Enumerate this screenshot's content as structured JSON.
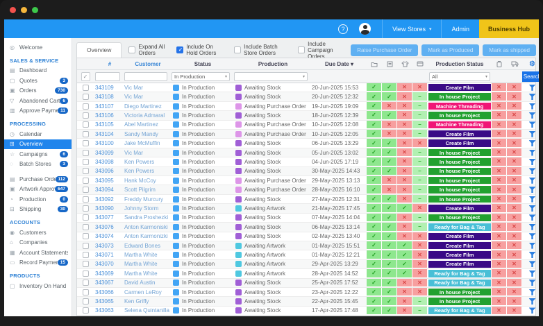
{
  "topbar": {
    "help": "?",
    "view_stores": "View Stores",
    "view_stores_caret": "▾",
    "admin": "Admin",
    "business_hub": "Business Hub"
  },
  "icon_glyphs": {
    "info-icon": "◎",
    "dashboard-icon": "▤",
    "quotes-icon": "▢",
    "orders-icon": "▣",
    "cart-icon": "▽",
    "payments-icon": "▥",
    "calendar-icon": "◷",
    "overview-icon": "⊞",
    "campaigns-icon": "☆",
    "batch-stores-icon": "◌",
    "purchase-orders-icon": "▤",
    "artwork-icon": "▣",
    "production-icon": "◔",
    "shipping-icon": "⊟",
    "customers-icon": "◉",
    "companies-icon": "⌂",
    "statements-icon": "▦",
    "record-payments-icon": "▭",
    "inventory-icon": "▢",
    "gear-icon": "⚙"
  },
  "sidebar": {
    "sections": [
      {
        "header": null,
        "items": [
          {
            "label": "Welcome",
            "icon": "info-icon"
          }
        ]
      },
      {
        "header": "SALES & SERVICE",
        "items": [
          {
            "label": "Dashboard",
            "icon": "dashboard-icon"
          },
          {
            "label": "Quotes",
            "icon": "quotes-icon",
            "badge": "3"
          },
          {
            "label": "Orders",
            "icon": "orders-icon",
            "badge": "730"
          },
          {
            "label": "Abandoned Carts",
            "icon": "cart-icon",
            "badge": "6"
          },
          {
            "label": "Approve Payments",
            "icon": "payments-icon",
            "badge": "11"
          }
        ]
      },
      {
        "header": "PROCESSING",
        "items": [
          {
            "label": "Calendar",
            "icon": "calendar-icon"
          },
          {
            "label": "Overview",
            "icon": "overview-icon",
            "selected": true
          },
          {
            "label": "Campaigns",
            "icon": "campaigns-icon",
            "badge": "6"
          },
          {
            "label": "Batch Stores",
            "icon": "batch-stores-icon",
            "badge": "3"
          },
          {
            "label": "Purchase Orders",
            "icon": "purchase-orders-icon",
            "badge": "112",
            "gap": true
          },
          {
            "label": "Artwork Approvals",
            "icon": "artwork-icon",
            "badge": "647"
          },
          {
            "label": "Production",
            "icon": "production-icon",
            "badge": "0"
          },
          {
            "label": "Shipping",
            "icon": "shipping-icon",
            "badge": "30"
          }
        ]
      },
      {
        "header": "ACCOUNTS",
        "items": [
          {
            "label": "Customers",
            "icon": "customers-icon"
          },
          {
            "label": "Companies",
            "icon": "companies-icon"
          },
          {
            "label": "Account Statements",
            "icon": "statements-icon"
          },
          {
            "label": "Record Payments",
            "icon": "record-payments-icon",
            "badge": "15"
          }
        ]
      },
      {
        "header": "PRODUCTS",
        "items": [
          {
            "label": "Inventory On Hand",
            "icon": "inventory-icon"
          }
        ]
      }
    ]
  },
  "toolbar": {
    "tab": "Overview",
    "checkboxes": [
      {
        "label": "Expand All Orders",
        "checked": false
      },
      {
        "label": "Include On Hold Orders",
        "checked": true
      },
      {
        "label": "Include Batch Store Orders",
        "checked": false
      },
      {
        "label": "Include Campaign Orders",
        "checked": false
      }
    ],
    "actions": [
      "Raise Purchase Order",
      "Mark as Produced",
      "Mark as shipped"
    ]
  },
  "table": {
    "header": {
      "id": "#",
      "customer": "Customer",
      "status": "Status",
      "production": "Production",
      "due": "Due Date",
      "due_sort": "▾",
      "production_status": "Production Status"
    },
    "filter": {
      "select_all_checked": true,
      "id_value": "",
      "customer_value": "",
      "status_value": "In Production",
      "production_value": "",
      "production_status_value": "All",
      "caret": "▾",
      "search_label": "Search"
    },
    "flag_glyphs": {
      "y": "✓",
      "n": "✕",
      "d": "–"
    },
    "rows": [
      {
        "id": "343109",
        "customer": "Vic Mar",
        "status": "In Production",
        "production": "Awaiting Stock",
        "due": "20-Jun-2025 15:53",
        "flags": "yynn",
        "production_status": "Create Film",
        "post_flags": "nn"
      },
      {
        "id": "343108",
        "customer": "Vic Mar",
        "status": "In Production",
        "production": "Awaiting Stock",
        "due": "20-Jun-2025 12:32",
        "flags": "yynd",
        "production_status": "In house Project",
        "post_flags": "nn"
      },
      {
        "id": "343107",
        "customer": "Diego Martinez",
        "status": "In Production",
        "production": "Awaiting Purchase Order",
        "due": "19-Jun-2025 19:09",
        "flags": "ynnd",
        "production_status": "Machine Threading",
        "post_flags": "nn"
      },
      {
        "id": "343106",
        "customer": "Victoria Admaral",
        "status": "In Production",
        "production": "Awaiting Stock",
        "due": "18-Jun-2025 12:39",
        "flags": "yynd",
        "production_status": "In house Project",
        "post_flags": "nn"
      },
      {
        "id": "343105",
        "customer": "Abel Martinez",
        "status": "In Production",
        "production": "Awaiting Purchase Order",
        "due": "10-Jun-2025 12:08",
        "flags": "ynnd",
        "production_status": "Machine Threading",
        "post_flags": "nn"
      },
      {
        "id": "343104",
        "customer": "Sandy Mandy",
        "status": "In Production",
        "production": "Awaiting Purchase Order",
        "due": "10-Jun-2025 12:05",
        "flags": "ynnd",
        "production_status": "Create Film",
        "post_flags": "nn"
      },
      {
        "id": "343100",
        "customer": "Jake McMuffin",
        "status": "In Production",
        "production": "Awaiting Stock",
        "due": "06-Jun-2025 13:29",
        "flags": "yynn",
        "production_status": "Create Film",
        "post_flags": "nn"
      },
      {
        "id": "343099",
        "customer": "Vic Mar",
        "status": "In Production",
        "production": "Awaiting Stock",
        "due": "05-Jun-2025 13:02",
        "flags": "yynd",
        "production_status": "In house Project",
        "post_flags": "nn"
      },
      {
        "id": "343098",
        "customer": "Ken Powers",
        "status": "In Production",
        "production": "Awaiting Stock",
        "due": "04-Jun-2025 17:19",
        "flags": "yynd",
        "production_status": "In house Project",
        "post_flags": "nn"
      },
      {
        "id": "343096",
        "customer": "Ken Powers",
        "status": "In Production",
        "production": "Awaiting Stock",
        "due": "30-May-2025 14:43",
        "flags": "yynd",
        "production_status": "In house Project",
        "post_flags": "nn"
      },
      {
        "id": "343095",
        "customer": "Hank McCoy",
        "status": "In Production",
        "production": "Awaiting Purchase Order",
        "due": "29-May-2025 13:13",
        "flags": "ynnd",
        "production_status": "In house Project",
        "post_flags": "nn"
      },
      {
        "id": "343094",
        "customer": "Scott Pilgrim",
        "status": "In Production",
        "production": "Awaiting Purchase Order",
        "due": "28-May-2025 16:10",
        "flags": "ynnd",
        "production_status": "In house Project",
        "post_flags": "nn"
      },
      {
        "id": "343092",
        "customer": "Freddy Murcury",
        "status": "In Production",
        "production": "Awaiting Stock",
        "due": "27-May-2025 12:31",
        "flags": "yynd",
        "production_status": "In house Project",
        "post_flags": "nn"
      },
      {
        "id": "343090",
        "customer": "Johnny Storm",
        "status": "In Production",
        "production": "Awaiting Artwork",
        "due": "21-May-2025 17:45",
        "flags": "yyyn",
        "production_status": "Create Film",
        "post_flags": "nn"
      },
      {
        "id": "343077",
        "customer": "Sandra Proshezki",
        "status": "In Production",
        "production": "Awaiting Stock",
        "due": "07-May-2025 14:04",
        "flags": "yynd",
        "production_status": "In house Project",
        "post_flags": "nn"
      },
      {
        "id": "343076",
        "customer": "Anton Karmoniski",
        "status": "In Production",
        "production": "Awaiting Stock",
        "due": "06-May-2025 13:14",
        "flags": "yynd",
        "production_status": "Ready for Bag & Tag",
        "post_flags": "nn"
      },
      {
        "id": "343074",
        "customer": "Anton Karmonizki",
        "status": "In Production",
        "production": "Awaiting Stock",
        "due": "02-May-2025 13:40",
        "flags": "yynn",
        "production_status": "Create Film",
        "post_flags": "nn"
      },
      {
        "id": "343073",
        "customer": "Edward Bones",
        "status": "In Production",
        "production": "Awaiting Artwork",
        "due": "01-May-2025 15:51",
        "flags": "yyyn",
        "production_status": "Create Film",
        "post_flags": "nn"
      },
      {
        "id": "343071",
        "customer": "Martha White",
        "status": "In Production",
        "production": "Awaiting Artwork",
        "due": "01-May-2025 12:21",
        "flags": "yyyn",
        "production_status": "Create Film",
        "post_flags": "nn"
      },
      {
        "id": "343070",
        "customer": "Martha White",
        "status": "In Production",
        "production": "Awaiting Artwork",
        "due": "29-Apr-2025 13:29",
        "flags": "yyyn",
        "production_status": "Create Film",
        "post_flags": "nn"
      },
      {
        "id": "343069",
        "customer": "Martha White",
        "status": "In Production",
        "production": "Awaiting Artwork",
        "due": "28-Apr-2025 14:52",
        "flags": "yyyn",
        "production_status": "Ready for Bag & Tag",
        "post_flags": "nn"
      },
      {
        "id": "343067",
        "customer": "David Austin",
        "status": "In Production",
        "production": "Awaiting Stock",
        "due": "25-Apr-2025 17:52",
        "flags": "yynn",
        "production_status": "Ready for Bag & Tag",
        "post_flags": "nn"
      },
      {
        "id": "343066",
        "customer": "Carmen LeRoy",
        "status": "In Production",
        "production": "Awaiting Stock",
        "due": "23-Apr-2025 12:22",
        "flags": "yynn",
        "production_status": "In house Project",
        "post_flags": "nn"
      },
      {
        "id": "343065",
        "customer": "Ken Griffy",
        "status": "In Production",
        "production": "Awaiting Stock",
        "due": "22-Apr-2025 15:45",
        "flags": "yynd",
        "production_status": "In house Project",
        "post_flags": "nn"
      },
      {
        "id": "343063",
        "customer": "Selena Quintanilla",
        "status": "In Production",
        "production": "Awaiting Stock",
        "due": "17-Apr-2025 17:48",
        "flags": "yynd",
        "production_status": "Ready for Bag & Tag",
        "post_flags": "nn"
      }
    ]
  },
  "colors": {
    "accent_blue": "#2196f3",
    "business_hub_yellow": "#f0c419",
    "badge_blue": "#1667c7",
    "status_square": "#42a5f5",
    "production_squares": {
      "Awaiting Stock": "#a05fd6",
      "Awaiting Purchase Order": "#dd96e8",
      "Awaiting Artwork": "#4fc8e0"
    },
    "production_status_pills": {
      "Create Film": "#3a0a86",
      "In house Project": "#22a130",
      "Machine Threading": "#f01676",
      "Ready for Bag & Tag": "#49bfd6"
    }
  }
}
